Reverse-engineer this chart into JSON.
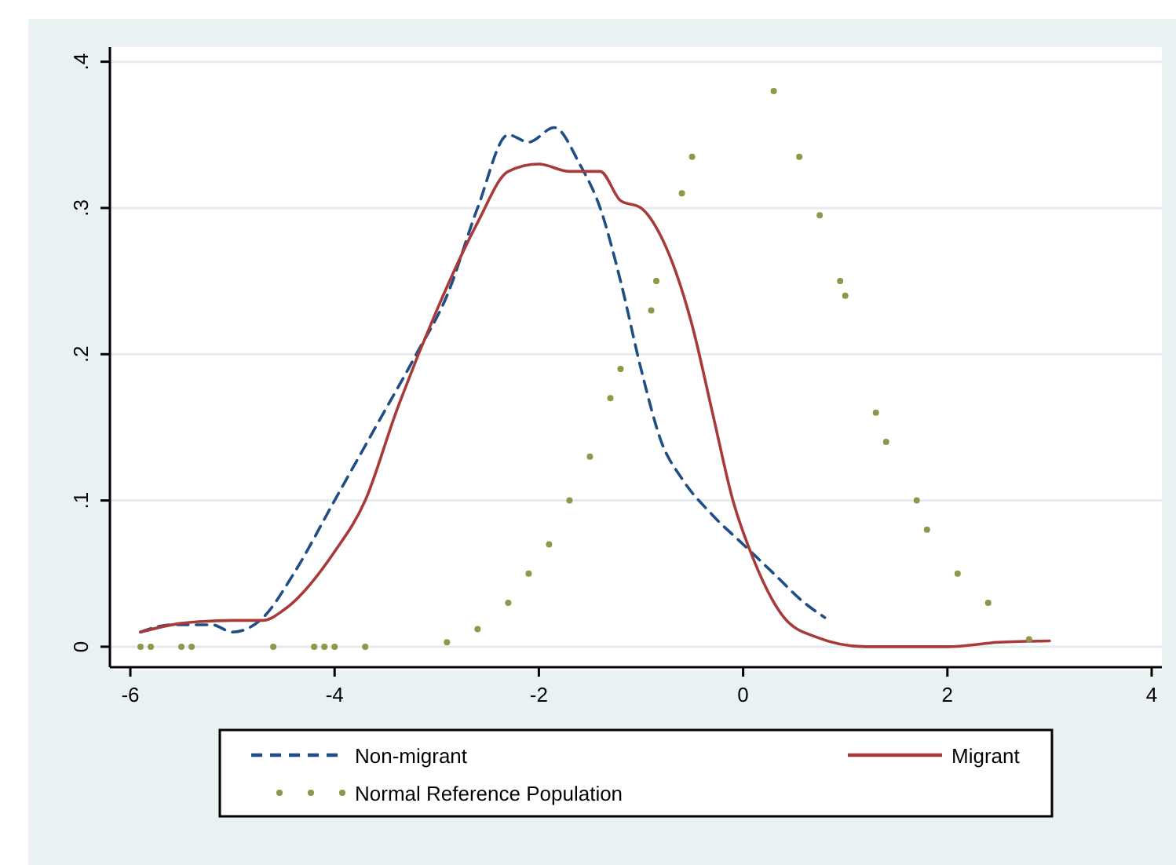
{
  "chart_data": {
    "type": "line",
    "xlim": [
      -6.2,
      4.1
    ],
    "ylim": [
      -0.014,
      0.41
    ],
    "xticks": [
      -6,
      -4,
      -2,
      0,
      2,
      4
    ],
    "yticks": [
      0,
      {
        "value": 0.1,
        "label": ".1"
      },
      {
        "value": 0.2,
        "label": ".2"
      },
      {
        "value": 0.3,
        "label": ".3"
      },
      {
        "value": 0.4,
        "label": ".4"
      }
    ],
    "grid": "y",
    "legend": "bottom",
    "series": [
      {
        "name": "Non-migrant",
        "color": "#1f4e85",
        "line_style": "dashed",
        "x": [
          -5.9,
          -5.6,
          -5.2,
          -5.0,
          -4.7,
          -4.4,
          -4.0,
          -3.6,
          -3.2,
          -2.9,
          -2.6,
          -2.3,
          -2.1,
          -1.85,
          -1.6,
          -1.4,
          -1.2,
          -1.0,
          -0.8,
          -0.6,
          -0.3,
          0,
          0.3,
          0.6,
          0.8
        ],
        "values": [
          0.01,
          0.015,
          0.015,
          0.01,
          0.02,
          0.05,
          0.1,
          0.15,
          0.2,
          0.24,
          0.3,
          0.35,
          0.345,
          0.355,
          0.33,
          0.3,
          0.25,
          0.19,
          0.14,
          0.115,
          0.09,
          0.07,
          0.05,
          0.03,
          0.02
        ]
      },
      {
        "name": "Migrant",
        "color": "#a83a3a",
        "line_style": "solid",
        "x": [
          -5.9,
          -5.5,
          -5.0,
          -4.7,
          -4.5,
          -4.0,
          -3.7,
          -3.4,
          -3.0,
          -2.6,
          -2.3,
          -2.0,
          -1.7,
          -1.4,
          -1.2,
          -1.0,
          -0.8,
          -0.5,
          -0.3,
          -0.1,
          0.1,
          0.4,
          0.7,
          1.2,
          2.0,
          2.5,
          3.0
        ],
        "values": [
          0.01,
          0.016,
          0.018,
          0.018,
          0.025,
          0.065,
          0.1,
          0.16,
          0.23,
          0.29,
          0.325,
          0.33,
          0.325,
          0.325,
          0.305,
          0.3,
          0.28,
          0.22,
          0.16,
          0.1,
          0.06,
          0.02,
          0.007,
          0,
          0,
          0.003,
          0.004
        ]
      },
      {
        "name": "Normal Reference Population",
        "color": "#8a9a4a",
        "type": "scatter",
        "marker": "circle",
        "x": [
          -5.9,
          -5.8,
          -5.5,
          -5.4,
          -4.6,
          -4.2,
          -4.1,
          -4.0,
          -3.7,
          -2.9,
          -2.6,
          -2.3,
          -2.1,
          -1.9,
          -1.7,
          -1.5,
          -1.3,
          -1.2,
          -0.9,
          -0.85,
          -0.6,
          -0.5,
          0.3,
          0.55,
          0.75,
          0.95,
          1.0,
          1.3,
          1.4,
          1.7,
          1.8,
          2.1,
          2.4,
          2.8
        ],
        "values": [
          0,
          0,
          0,
          0,
          0,
          0,
          0,
          0,
          0,
          0.003,
          0.012,
          0.03,
          0.05,
          0.07,
          0.1,
          0.13,
          0.17,
          0.19,
          0.23,
          0.25,
          0.31,
          0.335,
          0.38,
          0.335,
          0.295,
          0.25,
          0.24,
          0.16,
          0.14,
          0.1,
          0.08,
          0.05,
          0.03,
          0.005
        ]
      }
    ]
  }
}
